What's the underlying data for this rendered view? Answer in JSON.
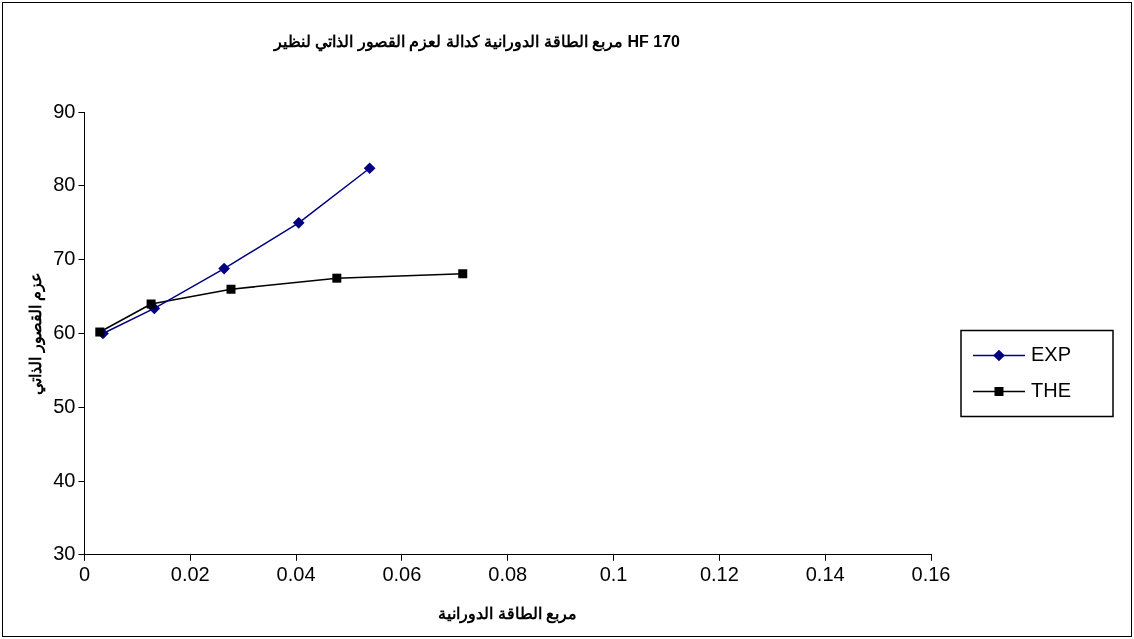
{
  "chart_data": {
    "type": "line",
    "title": "مربع الطاقة الدورانية كدالة لعزم القصور الذاتي لنظير HF 170",
    "xlabel": "مربع الطاقة الدورانية",
    "ylabel": "عزم القصور الذاتي",
    "series": [
      {
        "name": "EXP",
        "color": "#000080",
        "marker": "diamond",
        "x": [
          0.0035,
          0.0132,
          0.0264,
          0.0405,
          0.0539
        ],
        "values": [
          60.0,
          63.4,
          68.8,
          75.0,
          82.4
        ]
      },
      {
        "name": "THE",
        "color": "#000000",
        "marker": "square",
        "x": [
          0.0029,
          0.0126,
          0.0277,
          0.0477,
          0.0715
        ],
        "values": [
          60.2,
          64.0,
          66.0,
          67.5,
          68.1
        ]
      }
    ],
    "xlim": [
      0,
      0.16
    ],
    "xticks": [
      0,
      0.02,
      0.04,
      0.06,
      0.08,
      0.1,
      0.12,
      0.14,
      0.16
    ],
    "ylim": [
      30,
      90
    ],
    "yticks": [
      30,
      40,
      50,
      60,
      70,
      80,
      90
    ],
    "grid": false,
    "legend": "right"
  }
}
